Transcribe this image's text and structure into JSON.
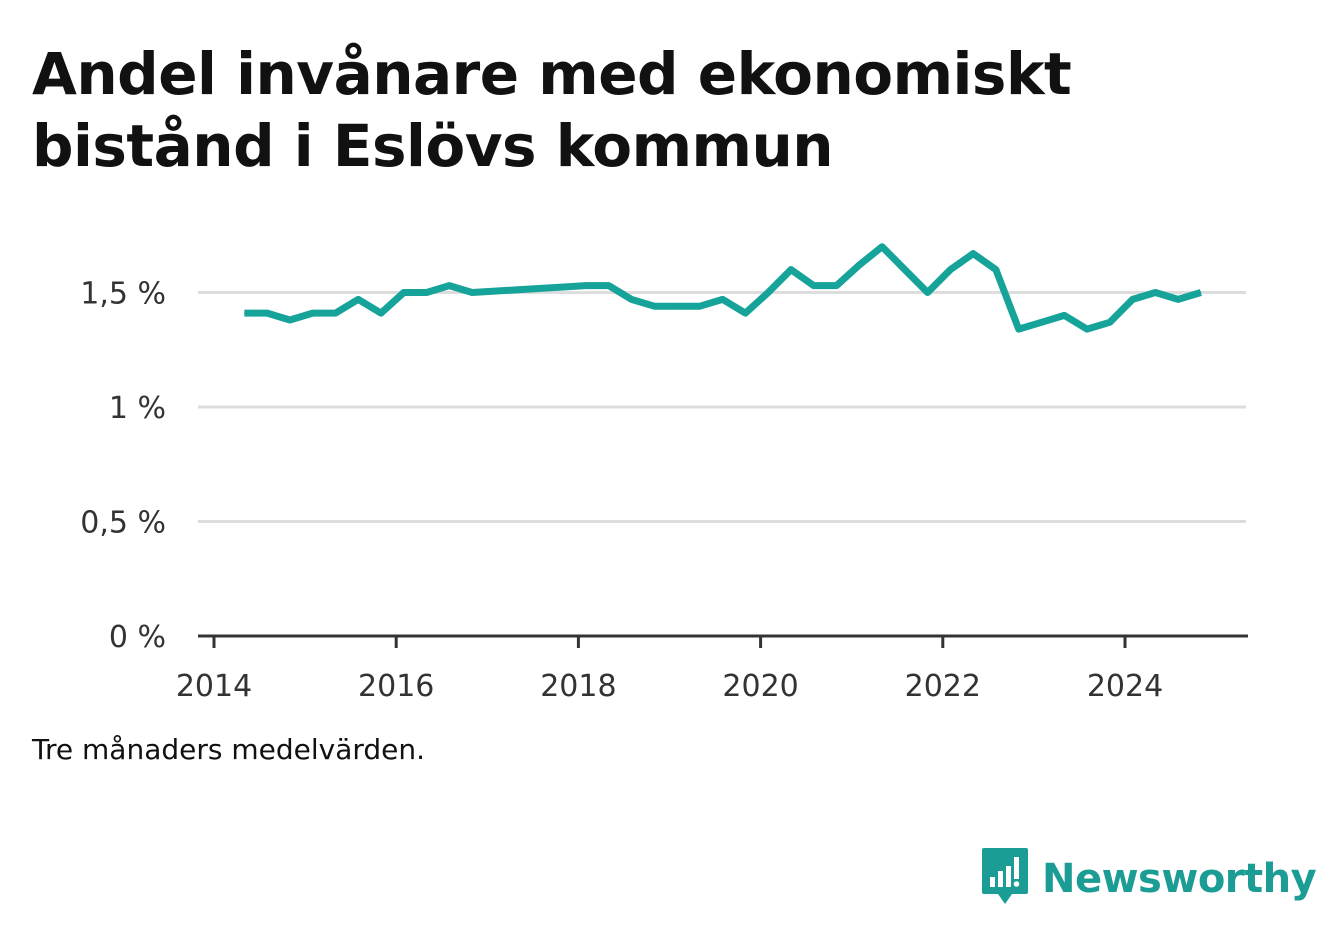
{
  "title": "Andel invånare med ekonomiskt bistånd i Eslövs kommun",
  "note": "Tre månaders medelvärden.",
  "brand": {
    "name": "Newsworthy",
    "icon": "newsworthy-logo-icon"
  },
  "colors": {
    "line": "#16a399",
    "grid": "#dddddd",
    "axis": "#333333",
    "brand": "#1b9c94"
  },
  "chart_data": {
    "type": "line",
    "title": "Andel invånare med ekonomiskt bistånd i Eslövs kommun",
    "xlabel": "",
    "ylabel": "",
    "xlim": [
      2014.0,
      2025.35
    ],
    "ylim": [
      0,
      1.8
    ],
    "x_ticks": [
      2014,
      2016,
      2018,
      2020,
      2022,
      2024
    ],
    "x_tick_labels": [
      "2014",
      "2016",
      "2018",
      "2020",
      "2022",
      "2024"
    ],
    "y_ticks": [
      0,
      0.5,
      1,
      1.5
    ],
    "y_tick_labels": [
      "0 %",
      "0,5 %",
      "1 %",
      "1,5 %"
    ],
    "grid": true,
    "series": [
      {
        "x": [
          "2014-05",
          "2014-08",
          "2014-11",
          "2015-02",
          "2015-05",
          "2015-08",
          "2015-11",
          "2016-02",
          "2016-05",
          "2016-08",
          "2016-11",
          "2018-02",
          "2018-05",
          "2018-08",
          "2018-11",
          "2019-02",
          "2019-05",
          "2019-08",
          "2019-11",
          "2020-02",
          "2020-05",
          "2020-08",
          "2020-11",
          "2021-02",
          "2021-05",
          "2021-08",
          "2021-11",
          "2022-02",
          "2022-05",
          "2022-08",
          "2022-11",
          "2023-02",
          "2023-05",
          "2023-08",
          "2023-11",
          "2024-02",
          "2024-05",
          "2024-08",
          "2024-11"
        ],
        "values": [
          1.41,
          1.41,
          1.38,
          1.41,
          1.41,
          1.47,
          1.41,
          1.5,
          1.5,
          1.53,
          1.5,
          1.53,
          1.53,
          1.47,
          1.44,
          1.44,
          1.44,
          1.47,
          1.41,
          1.5,
          1.6,
          1.53,
          1.53,
          1.62,
          1.7,
          1.6,
          1.5,
          1.6,
          1.67,
          1.6,
          1.34,
          1.37,
          1.4,
          1.34,
          1.37,
          1.47,
          1.5,
          1.47,
          1.5
        ]
      }
    ]
  }
}
